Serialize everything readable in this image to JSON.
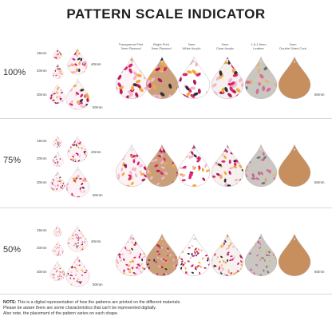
{
  "title": "PATTERN SCALE INDICATOR",
  "material_headers": [
    {
      "line1": "Transparent Print",
      "line2": "3mm Plywood"
    },
    {
      "line1": "Bright Print",
      "line2": "3mm Plywood"
    },
    {
      "line1": "3mm",
      "line2": "White Acrylic"
    },
    {
      "line1": "3mm",
      "line2": "Clear Acrylic"
    },
    {
      "line1": "1.6-1.8mm",
      "line2": "Leather"
    },
    {
      "line1": "2mm",
      "line2": "Double Sided Cork"
    }
  ],
  "rows": [
    {
      "scale": "100%",
      "sizes": [
        "15mm",
        "20mm",
        "30mm",
        "40mm",
        "50mm"
      ],
      "dimension": "60mm"
    },
    {
      "scale": "75%",
      "sizes": [
        "15mm",
        "20mm",
        "30mm",
        "40mm",
        "50mm"
      ],
      "dimension": "60mm"
    },
    {
      "scale": "50%",
      "sizes": [
        "15mm",
        "20mm",
        "30mm",
        "40mm",
        "50mm"
      ],
      "dimension": "60mm"
    }
  ],
  "note": {
    "label": "NOTE:",
    "line1": " This is a digital representation of how the patterns are printed on the different materials.",
    "line2": "Please be aware there are some characteristics that can't be represented digitally.",
    "line3": "Also note, the placement of the pattern varies on each shape."
  },
  "colors": {
    "pink": "#d9256e",
    "magenta": "#b5175a",
    "orange": "#f1a93b",
    "light_pink": "#f3b6cb",
    "charcoal": "#2e2e3a",
    "wood": "#caa07a",
    "cork": "#c78f5e",
    "leather": "#c9c7c2"
  }
}
